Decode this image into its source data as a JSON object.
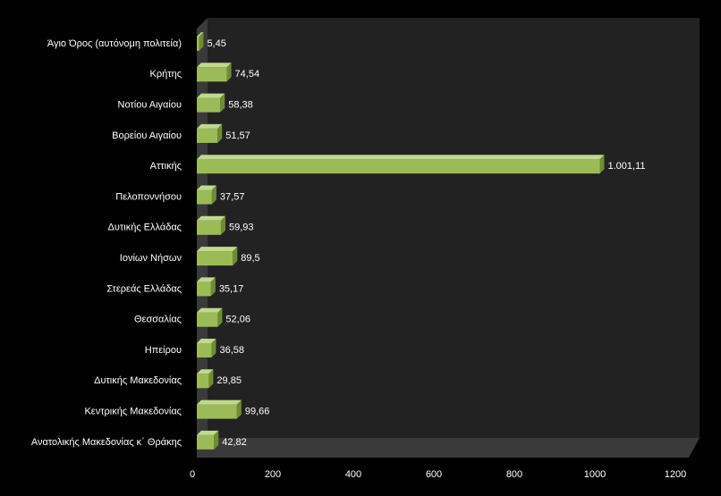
{
  "chart_data": {
    "type": "bar",
    "orientation": "horizontal",
    "categories": [
      "Άγιο Όρος (αυτόνομη πολιτεία)",
      "Κρήτης",
      "Νοτίου Αιγαίου",
      "Βορείου Αιγαίου",
      "Αττικής",
      "Πελοποννήσου",
      "Δυτικής Ελλάδας",
      "Ιονίων Νήσων",
      "Στερεάς Ελλάδας",
      "Θεσσαλίας",
      "Ηπείρου",
      "Δυτικής Μακεδονίας",
      "Κεντρικής Μακεδονίας",
      "Ανατολικής Μακεδονίας κ΄ Θράκης"
    ],
    "values": [
      5.45,
      74.54,
      58.38,
      51.57,
      1001.11,
      37.57,
      59.93,
      89.5,
      35.17,
      52.06,
      36.58,
      29.85,
      99.66,
      42.82
    ],
    "value_labels": [
      "5,45",
      "74,54",
      "58,38",
      "51,57",
      "1.001,11",
      "37,57",
      "59,93",
      "89,5",
      "35,17",
      "52,06",
      "36,58",
      "29,85",
      "99,66",
      "42,82"
    ],
    "x_ticks": [
      "0",
      "200",
      "400",
      "600",
      "800",
      "1000",
      "1200"
    ],
    "xlim": [
      0,
      1200
    ],
    "title": "",
    "xlabel": "",
    "ylabel": "",
    "grid": false,
    "legend": "none",
    "colors": {
      "background": "#000000",
      "wall": "#222222",
      "floor": "#3a3a3a",
      "bar_front": "#9bbb59",
      "bar_top": "#c0d890",
      "bar_side": "#6f8c35",
      "label_text": "#ffffff"
    }
  }
}
